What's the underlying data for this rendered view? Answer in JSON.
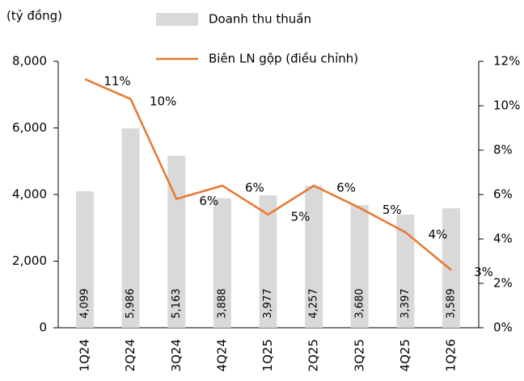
{
  "chart_data": {
    "type": "bar_line",
    "unit_label": "(tỷ đồng)",
    "categories": [
      "1Q24",
      "2Q24",
      "3Q24",
      "4Q24",
      "1Q25",
      "2Q25",
      "3Q25",
      "4Q25",
      "1Q26"
    ],
    "series": [
      {
        "name": "Doanh thu thuần",
        "type": "bar",
        "color": "#d9d9d9",
        "values": [
          4099,
          5986,
          5163,
          3888,
          3977,
          4257,
          3680,
          3397,
          3589
        ],
        "value_labels": [
          "4,099",
          "5,986",
          "5,163",
          "3,888",
          "3,977",
          "4,257",
          "3,680",
          "3,397",
          "3,589"
        ]
      },
      {
        "name": "Biên LN gộp (điều chỉnh)",
        "type": "line",
        "axis": "y2",
        "color": "#e8772e",
        "values": [
          11.2,
          10.3,
          5.8,
          6.4,
          5.1,
          6.4,
          5.4,
          4.3,
          2.6
        ],
        "value_labels": [
          "11%",
          "10%",
          "6%",
          "6%",
          "5%",
          "6%",
          "5%",
          "4%",
          "3%"
        ]
      }
    ],
    "ylim": [
      0,
      8000
    ],
    "yticks": [
      0,
      {
        "value": 2000,
        "label": "2,000"
      },
      {
        "value": 4000,
        "label": "4,000"
      },
      {
        "value": 6000,
        "label": "6,000"
      },
      {
        "value": 8000,
        "label": "8,000"
      }
    ],
    "y2lim": [
      0,
      12
    ],
    "y2ticks": [
      {
        "value": 0,
        "label": "0%"
      },
      {
        "value": 2,
        "label": "2%"
      },
      {
        "value": 4,
        "label": "4%"
      },
      {
        "value": 6,
        "label": "6%"
      },
      {
        "value": 8,
        "label": "8%"
      },
      {
        "value": 10,
        "label": "10%"
      },
      {
        "value": 12,
        "label": "12%"
      }
    ],
    "grid": false
  }
}
